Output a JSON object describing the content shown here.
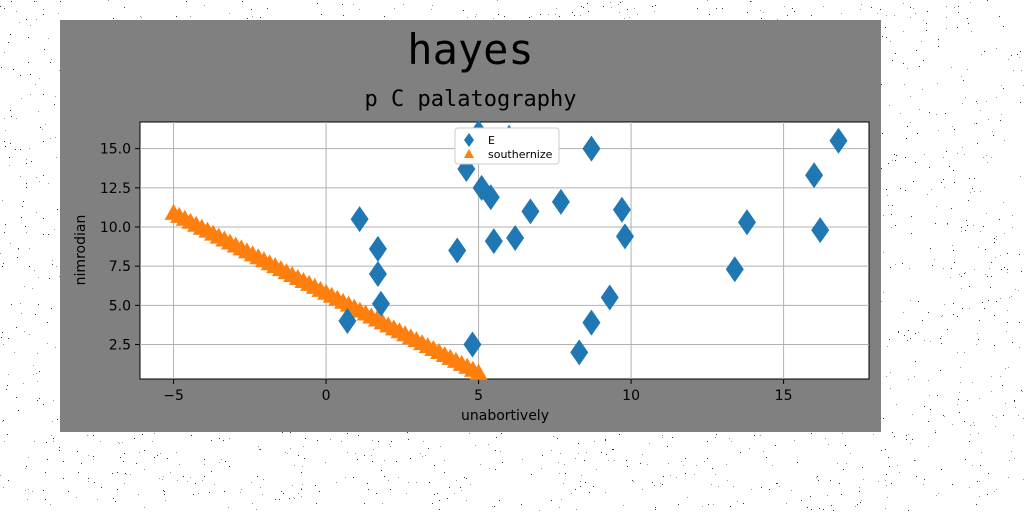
{
  "chart_data": {
    "type": "scatter",
    "title": "hayes",
    "subtitle": "p C palatography",
    "xlabel": "unabortively",
    "ylabel": "nimrodian",
    "xlim": [
      -6.1,
      17.8
    ],
    "ylim": [
      0.3,
      16.7
    ],
    "xticks": [
      -5,
      0,
      5,
      10,
      15
    ],
    "xtick_labels": [
      "−5",
      "0",
      "5",
      "10",
      "15"
    ],
    "yticks": [
      2.5,
      5.0,
      7.5,
      10.0,
      12.5,
      15.0
    ],
    "ytick_labels": [
      "2.5",
      "5.0",
      "7.5",
      "10.0",
      "12.5",
      "15.0"
    ],
    "grid": true,
    "legend_position": "top-center",
    "series": [
      {
        "name": "E",
        "marker": "diamond",
        "color": "#1f77b4",
        "points": [
          [
            0.7,
            4.0
          ],
          [
            1.1,
            10.5
          ],
          [
            1.7,
            8.6
          ],
          [
            1.7,
            7.0
          ],
          [
            1.8,
            5.1
          ],
          [
            4.3,
            8.5
          ],
          [
            4.6,
            13.7
          ],
          [
            4.8,
            2.5
          ],
          [
            5.0,
            16.0
          ],
          [
            5.1,
            12.5
          ],
          [
            5.4,
            11.9
          ],
          [
            5.5,
            9.1
          ],
          [
            6.0,
            15.7
          ],
          [
            6.2,
            9.3
          ],
          [
            6.7,
            11.0
          ],
          [
            7.7,
            11.6
          ],
          [
            8.3,
            2.0
          ],
          [
            8.7,
            3.9
          ],
          [
            8.7,
            15.0
          ],
          [
            9.3,
            5.5
          ],
          [
            9.7,
            11.1
          ],
          [
            9.8,
            9.4
          ],
          [
            13.4,
            7.3
          ],
          [
            13.8,
            10.3
          ],
          [
            16.0,
            13.3
          ],
          [
            16.2,
            9.8
          ],
          [
            16.8,
            15.5
          ]
        ]
      },
      {
        "name": "southernize",
        "marker": "triangle",
        "color": "#ff7f0e",
        "x_start": -5.0,
        "x_end": 5.0,
        "y_start": 10.9,
        "y_end": 0.7,
        "count": 55
      }
    ]
  }
}
